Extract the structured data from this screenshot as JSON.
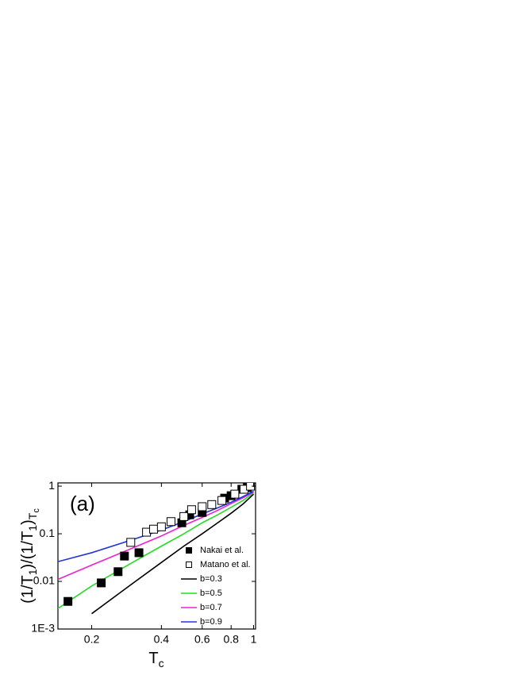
{
  "chart_data": {
    "type": "line",
    "annotation": "(a)",
    "xlabel": [
      "T",
      "c"
    ],
    "xlabel_levels": [
      0,
      1
    ],
    "ylabel": [
      "(1/T",
      "1",
      ")/(1/T",
      "1",
      ")",
      "T",
      "c"
    ],
    "ylabel_levels": [
      0,
      1,
      0,
      1,
      0,
      1,
      2
    ],
    "xscale": "log",
    "yscale": "log",
    "xlim": [
      0.143,
      1.02
    ],
    "ylim": [
      0.001,
      1.17
    ],
    "xticks": [
      0.2,
      0.4,
      0.6,
      0.8,
      1
    ],
    "yticks": [
      {
        "value": 0.001,
        "label": "1E-3"
      },
      0.01,
      0.1,
      1
    ],
    "legend": "lower right",
    "series": [
      {
        "name": "Nakai et al.",
        "type": "scatter",
        "marker": "filled-square",
        "color": "#000000",
        "x": [
          0.158,
          0.22,
          0.26,
          0.277,
          0.32,
          0.49,
          0.53,
          0.6,
          0.75,
          0.8,
          0.89,
          0.94
        ],
        "values": [
          0.0038,
          0.0093,
          0.016,
          0.034,
          0.04,
          0.17,
          0.25,
          0.28,
          0.56,
          0.63,
          0.86,
          0.93
        ]
      },
      {
        "name": "Matano et al.",
        "type": "scatter",
        "marker": "open-square",
        "color": "#000000",
        "x": [
          0.295,
          0.345,
          0.37,
          0.4,
          0.44,
          0.5,
          0.54,
          0.6,
          0.66,
          0.73,
          0.83,
          0.91,
          0.97
        ],
        "values": [
          0.066,
          0.108,
          0.125,
          0.14,
          0.18,
          0.23,
          0.32,
          0.37,
          0.41,
          0.5,
          0.68,
          0.86,
          1.0
        ]
      },
      {
        "name": "b=0.3",
        "type": "line",
        "color": "#000000",
        "x": [
          0.143,
          0.2,
          0.3,
          0.4,
          0.5,
          0.6,
          0.7,
          0.8,
          0.9,
          1.0
        ],
        "values": [
          null,
          0.0021,
          0.009,
          0.025,
          0.055,
          0.1,
          0.17,
          0.27,
          0.42,
          0.68
        ]
      },
      {
        "name": "b=0.5",
        "type": "line",
        "color": "#22dd22",
        "x": [
          0.143,
          0.2,
          0.3,
          0.4,
          0.5,
          0.6,
          0.7,
          0.8,
          0.9,
          1.0
        ],
        "values": [
          0.0027,
          0.008,
          0.025,
          0.055,
          0.1,
          0.17,
          0.25,
          0.36,
          0.5,
          0.72
        ]
      },
      {
        "name": "b=0.7",
        "type": "line",
        "color": "#ee22cc",
        "x": [
          0.143,
          0.2,
          0.3,
          0.4,
          0.5,
          0.6,
          0.7,
          0.8,
          0.9,
          1.0
        ],
        "values": [
          0.011,
          0.022,
          0.05,
          0.09,
          0.15,
          0.22,
          0.31,
          0.43,
          0.57,
          0.75
        ]
      },
      {
        "name": "b=0.9",
        "type": "line",
        "color": "#2233dd",
        "x": [
          0.143,
          0.2,
          0.3,
          0.4,
          0.5,
          0.6,
          0.7,
          0.8,
          0.9,
          1.0
        ],
        "values": [
          0.026,
          0.04,
          0.075,
          0.12,
          0.18,
          0.26,
          0.35,
          0.46,
          0.6,
          0.78
        ]
      }
    ]
  }
}
